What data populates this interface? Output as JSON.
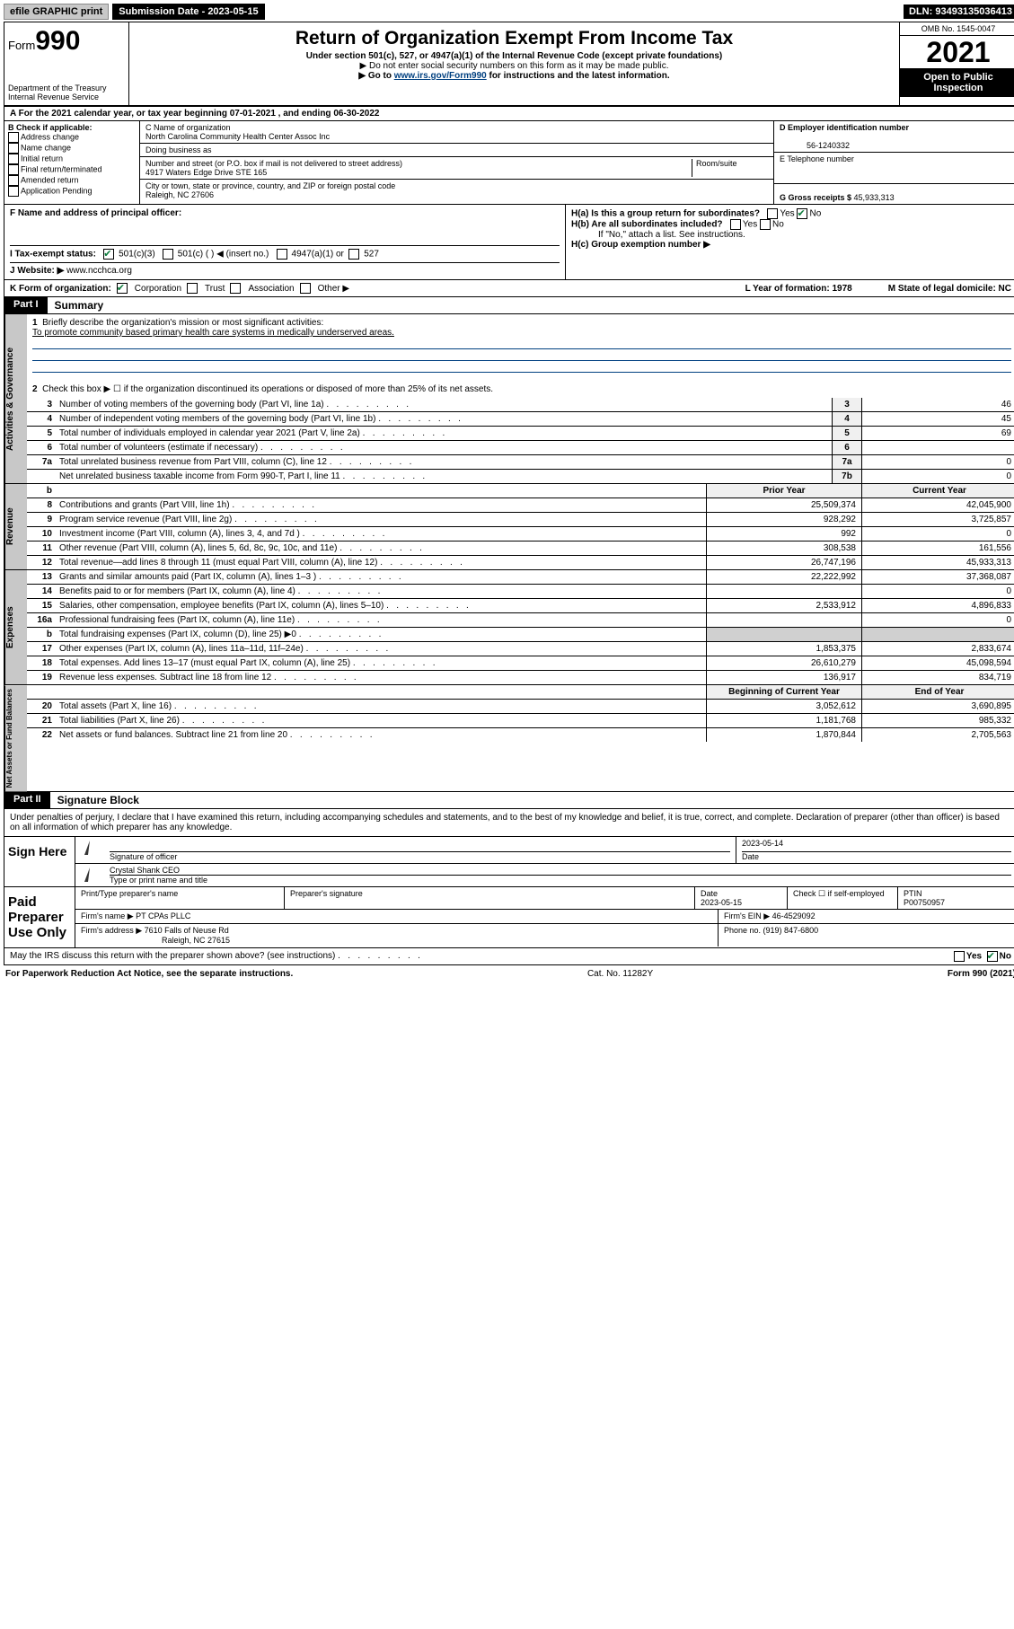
{
  "topbar": {
    "efile": "efile GRAPHIC print",
    "submission": "Submission Date - 2023-05-15",
    "dln": "DLN: 93493135036413"
  },
  "header": {
    "form_prefix": "Form",
    "form_num": "990",
    "dept": "Department of the Treasury",
    "irs": "Internal Revenue Service",
    "title": "Return of Organization Exempt From Income Tax",
    "subtitle": "Under section 501(c), 527, or 4947(a)(1) of the Internal Revenue Code (except private foundations)",
    "note1": "▶ Do not enter social security numbers on this form as it may be made public.",
    "note2_pre": "▶ Go to ",
    "note2_link": "www.irs.gov/Form990",
    "note2_post": " for instructions and the latest information.",
    "omb": "OMB No. 1545-0047",
    "year": "2021",
    "open": "Open to Public Inspection"
  },
  "rowA": {
    "text": "A For the 2021 calendar year, or tax year beginning 07-01-2021    , and ending 06-30-2022"
  },
  "colB": {
    "label": "B Check if applicable:",
    "opts": [
      "Address change",
      "Name change",
      "Initial return",
      "Final return/terminated",
      "Amended return",
      "Application Pending"
    ]
  },
  "colC": {
    "name_label": "C Name of organization",
    "name": "North Carolina Community Health Center Assoc Inc",
    "dba_label": "Doing business as",
    "dba": "",
    "addr_label": "Number and street (or P.O. box if mail is not delivered to street address)",
    "room_label": "Room/suite",
    "addr": "4917 Waters Edge Drive STE 165",
    "city_label": "City or town, state or province, country, and ZIP or foreign postal code",
    "city": "Raleigh, NC  27606"
  },
  "colDE": {
    "d_label": "D Employer identification number",
    "d_val": "56-1240332",
    "e_label": "E Telephone number",
    "e_val": "",
    "g_label": "G Gross receipts $ ",
    "g_val": "45,933,313"
  },
  "rowF": {
    "label": "F  Name and address of principal officer:",
    "val": ""
  },
  "rowH": {
    "ha": "H(a)  Is this a group return for subordinates?",
    "hb": "H(b)  Are all subordinates included?",
    "hb_note": "If \"No,\" attach a list. See instructions.",
    "hc": "H(c)  Group exemption number ▶",
    "yes": "Yes",
    "no": "No"
  },
  "rowI": {
    "label": "I   Tax-exempt status:",
    "o1": "501(c)(3)",
    "o2": "501(c) (   ) ◀ (insert no.)",
    "o3": "4947(a)(1) or",
    "o4": "527"
  },
  "rowJ": {
    "label": "J  Website: ▶ ",
    "val": "www.ncchca.org"
  },
  "rowK": {
    "label": "K Form of organization:",
    "o1": "Corporation",
    "o2": "Trust",
    "o3": "Association",
    "o4": "Other ▶",
    "l": "L Year of formation: 1978",
    "m": "M State of legal domicile: NC"
  },
  "part1": {
    "hdr": "Part I",
    "title": "Summary",
    "line1_label": "Briefly describe the organization's mission or most significant activities:",
    "line1_val": "To promote community based primary health care systems in medically underserved areas.",
    "line2": "Check this box ▶ ☐  if the organization discontinued its operations or disposed of more than 25% of its net assets.",
    "lines_gov": [
      {
        "n": "3",
        "t": "Number of voting members of the governing body (Part VI, line 1a)",
        "b": "3",
        "v": "46"
      },
      {
        "n": "4",
        "t": "Number of independent voting members of the governing body (Part VI, line 1b)",
        "b": "4",
        "v": "45"
      },
      {
        "n": "5",
        "t": "Total number of individuals employed in calendar year 2021 (Part V, line 2a)",
        "b": "5",
        "v": "69"
      },
      {
        "n": "6",
        "t": "Total number of volunteers (estimate if necessary)",
        "b": "6",
        "v": ""
      },
      {
        "n": "7a",
        "t": "Total unrelated business revenue from Part VIII, column (C), line 12",
        "b": "7a",
        "v": "0"
      },
      {
        "n": "",
        "t": "Net unrelated business taxable income from Form 990-T, Part I, line 11",
        "b": "7b",
        "v": "0"
      }
    ],
    "col_prior": "Prior Year",
    "col_current": "Current Year",
    "lines_rev": [
      {
        "n": "8",
        "t": "Contributions and grants (Part VIII, line 1h)",
        "p": "25,509,374",
        "c": "42,045,900"
      },
      {
        "n": "9",
        "t": "Program service revenue (Part VIII, line 2g)",
        "p": "928,292",
        "c": "3,725,857"
      },
      {
        "n": "10",
        "t": "Investment income (Part VIII, column (A), lines 3, 4, and 7d )",
        "p": "992",
        "c": "0"
      },
      {
        "n": "11",
        "t": "Other revenue (Part VIII, column (A), lines 5, 6d, 8c, 9c, 10c, and 11e)",
        "p": "308,538",
        "c": "161,556"
      },
      {
        "n": "12",
        "t": "Total revenue—add lines 8 through 11 (must equal Part VIII, column (A), line 12)",
        "p": "26,747,196",
        "c": "45,933,313"
      }
    ],
    "lines_exp": [
      {
        "n": "13",
        "t": "Grants and similar amounts paid (Part IX, column (A), lines 1–3 )",
        "p": "22,222,992",
        "c": "37,368,087"
      },
      {
        "n": "14",
        "t": "Benefits paid to or for members (Part IX, column (A), line 4)",
        "p": "",
        "c": "0"
      },
      {
        "n": "15",
        "t": "Salaries, other compensation, employee benefits (Part IX, column (A), lines 5–10)",
        "p": "2,533,912",
        "c": "4,896,833"
      },
      {
        "n": "16a",
        "t": "Professional fundraising fees (Part IX, column (A), line 11e)",
        "p": "",
        "c": "0"
      },
      {
        "n": "b",
        "t": "Total fundraising expenses (Part IX, column (D), line 25) ▶0",
        "p": "",
        "c": "",
        "shade": true
      },
      {
        "n": "17",
        "t": "Other expenses (Part IX, column (A), lines 11a–11d, 11f–24e)",
        "p": "1,853,375",
        "c": "2,833,674"
      },
      {
        "n": "18",
        "t": "Total expenses. Add lines 13–17 (must equal Part IX, column (A), line 25)",
        "p": "26,610,279",
        "c": "45,098,594"
      },
      {
        "n": "19",
        "t": "Revenue less expenses. Subtract line 18 from line 12",
        "p": "136,917",
        "c": "834,719"
      }
    ],
    "col_begin": "Beginning of Current Year",
    "col_end": "End of Year",
    "lines_net": [
      {
        "n": "20",
        "t": "Total assets (Part X, line 16)",
        "p": "3,052,612",
        "c": "3,690,895"
      },
      {
        "n": "21",
        "t": "Total liabilities (Part X, line 26)",
        "p": "1,181,768",
        "c": "985,332"
      },
      {
        "n": "22",
        "t": "Net assets or fund balances. Subtract line 21 from line 20",
        "p": "1,870,844",
        "c": "2,705,563"
      }
    ],
    "tab_gov": "Activities & Governance",
    "tab_rev": "Revenue",
    "tab_exp": "Expenses",
    "tab_net": "Net Assets or Fund Balances"
  },
  "part2": {
    "hdr": "Part II",
    "title": "Signature Block",
    "decl": "Under penalties of perjury, I declare that I have examined this return, including accompanying schedules and statements, and to the best of my knowledge and belief, it is true, correct, and complete. Declaration of preparer (other than officer) is based on all information of which preparer has any knowledge.",
    "sign_here": "Sign Here",
    "sig_officer": "Signature of officer",
    "sig_date": "Date",
    "sig_date_val": "2023-05-14",
    "sig_name": "Crystal Shank CEO",
    "sig_name_label": "Type or print name and title",
    "paid": "Paid Preparer Use Only",
    "prep_name_label": "Print/Type preparer's name",
    "prep_sig_label": "Preparer's signature",
    "prep_date_label": "Date",
    "prep_date": "2023-05-15",
    "prep_check": "Check ☐ if self-employed",
    "ptin_label": "PTIN",
    "ptin": "P00750957",
    "firm_name_label": "Firm's name    ▶ ",
    "firm_name": "PT CPAs PLLC",
    "firm_ein_label": "Firm's EIN ▶ ",
    "firm_ein": "46-4529092",
    "firm_addr_label": "Firm's address ▶ ",
    "firm_addr": "7610 Falls of Neuse Rd",
    "firm_city": "Raleigh, NC  27615",
    "phone_label": "Phone no. ",
    "phone": "(919) 847-6800",
    "may_irs": "May the IRS discuss this return with the preparer shown above? (see instructions)"
  },
  "footer": {
    "left": "For Paperwork Reduction Act Notice, see the separate instructions.",
    "mid": "Cat. No. 11282Y",
    "right": "Form 990 (2021)"
  }
}
